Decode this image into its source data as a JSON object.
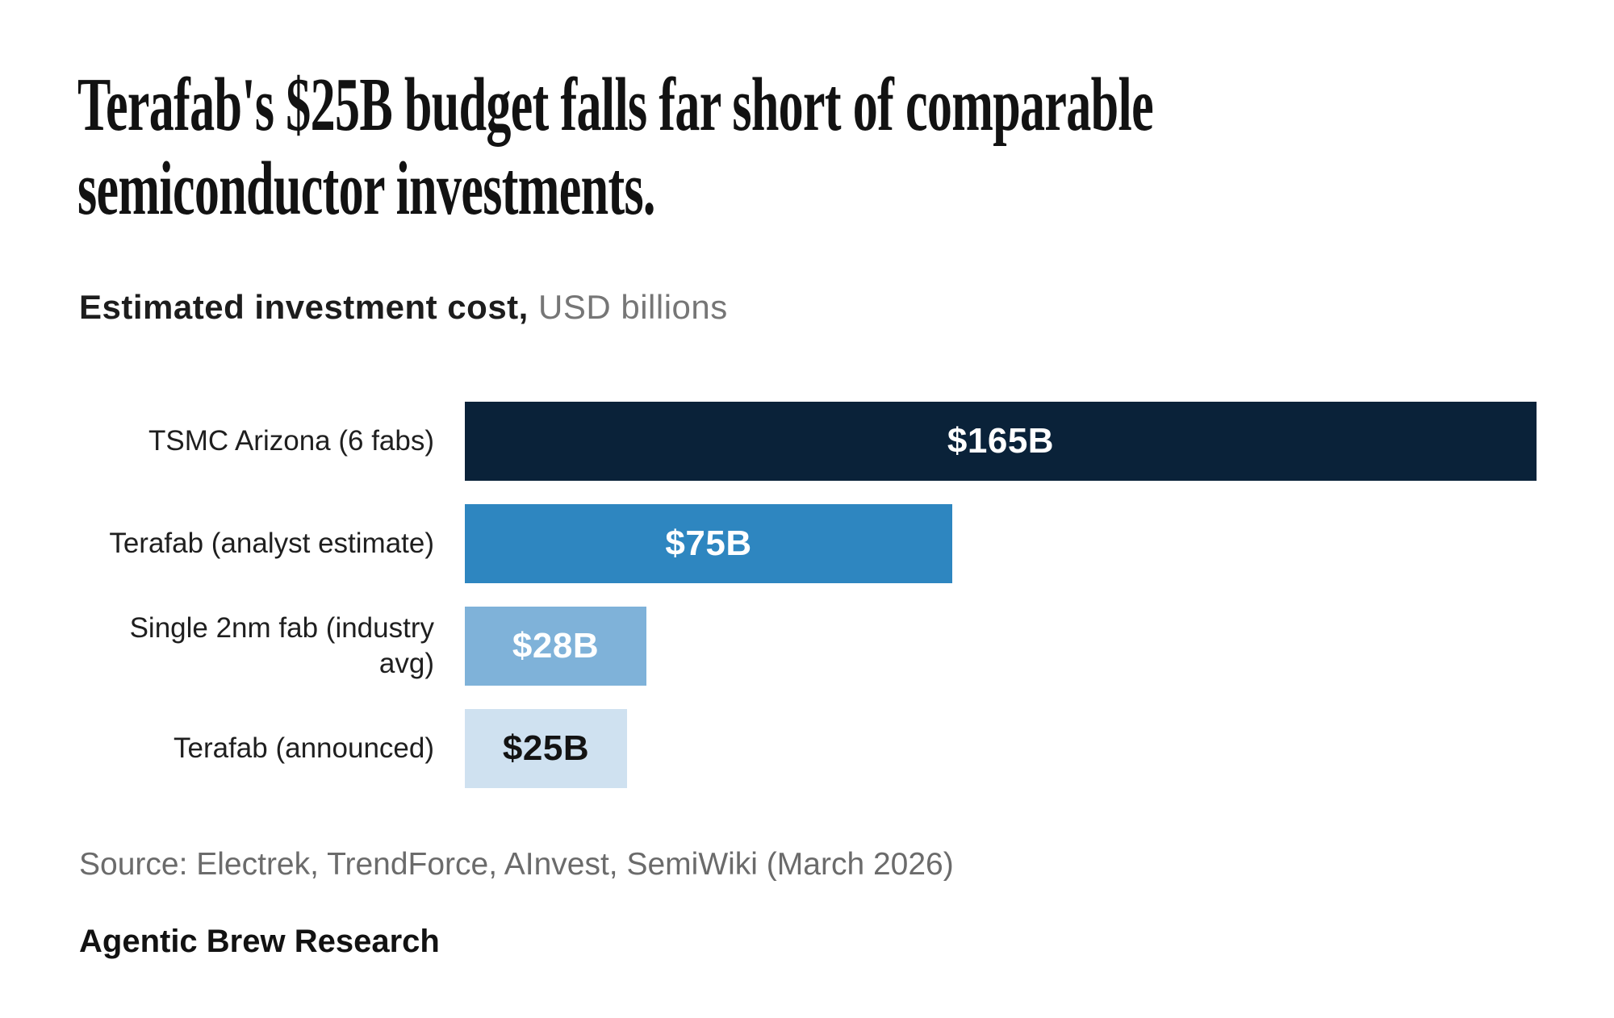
{
  "title": {
    "lines": [
      "Terafab's $25B budget falls far short of comparable",
      "semiconductor investments."
    ]
  },
  "subtitle": {
    "bold": "Estimated investment cost,",
    "rest": " USD billions"
  },
  "chart_data": {
    "type": "bar",
    "orientation": "horizontal",
    "title": "Terafab's $25B budget falls far short of comparable semiconductor investments.",
    "subtitle": "Estimated investment cost, USD billions",
    "unit": "USD billions",
    "categories": [
      "TSMC Arizona (6 fabs)",
      "Terafab (analyst estimate)",
      "Single 2nm fab (industry avg)",
      "Terafab (announced)"
    ],
    "values": [
      165,
      75,
      28,
      25
    ],
    "value_labels": [
      "$165B",
      "$75B",
      "$28B",
      "$25B"
    ],
    "xlim": [
      0,
      165
    ],
    "grid": false,
    "legend": "none",
    "bar_colors": [
      "#0a2239",
      "#2e86c0",
      "#7fb2d9",
      "#cfe1f0"
    ],
    "value_label_colors": [
      "#ffffff",
      "#ffffff",
      "#ffffff",
      "#131313"
    ]
  },
  "source": "Source: Electrek, TrendForce, AInvest, SemiWiki (March 2026)",
  "footer": "Agentic Brew Research"
}
